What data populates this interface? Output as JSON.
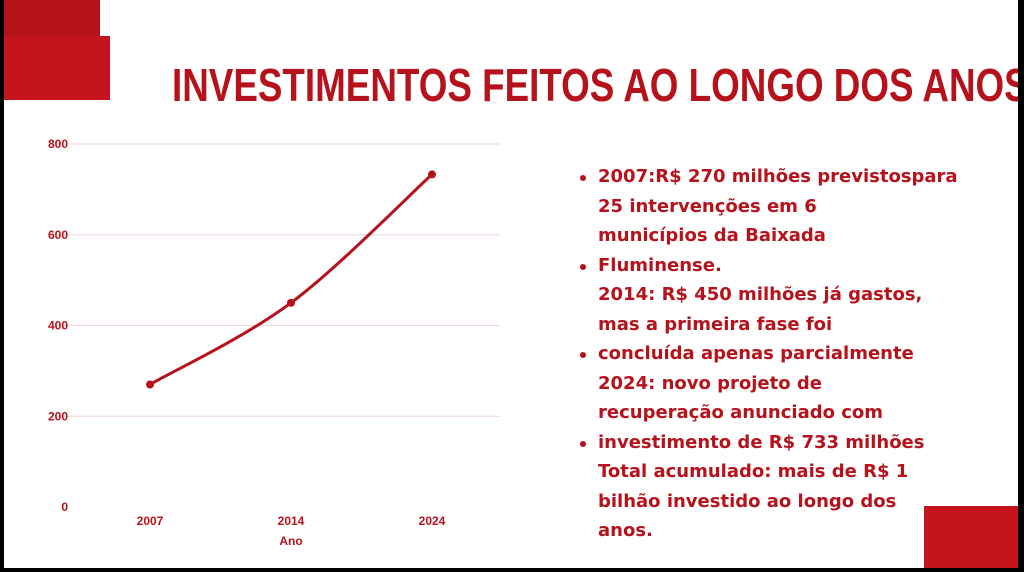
{
  "title": "INVESTIMENTOS FEITOS AO LONGO DOS ANOS",
  "colors": {
    "accent": "#b5121b",
    "background": "#ffffff",
    "grid": "#f2d5d7"
  },
  "chart_data": {
    "type": "line",
    "categories": [
      "2007",
      "2014",
      "2024"
    ],
    "series": [
      {
        "values": [
          270,
          450,
          733
        ]
      }
    ],
    "xlabel": "Ano",
    "ylabel": "",
    "ylim": [
      0,
      800
    ],
    "yticks": [
      "0",
      "200",
      "400",
      "600",
      "800"
    ],
    "grid": true
  },
  "bullets": [
    [
      "2007:R$ 270 milhões previstospara",
      "25 intervenções em 6",
      "municípios da Baixada"
    ],
    [
      "Fluminense.",
      "2014: R$ 450 milhões já gastos,",
      "mas a primeira fase foi"
    ],
    [
      "concluída apenas parcialmente",
      "2024: novo projeto de",
      "recuperação anunciado com"
    ],
    [
      "investimento de R$ 733 milhões",
      "Total acumulado: mais de R$ 1",
      "bilhão investido ao longo dos",
      "anos."
    ]
  ]
}
